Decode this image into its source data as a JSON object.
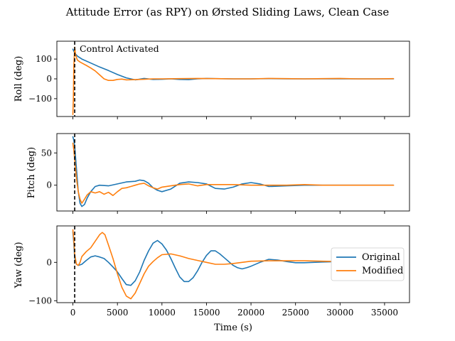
{
  "chart_data": {
    "type": "line",
    "title": "Attitude Error (as RPY) on Ørsted Sliding Laws, Clean Case",
    "xlabel": "Time (s)",
    "xlim": [
      -1800,
      37800
    ],
    "xticks": [
      0,
      5000,
      10000,
      15000,
      20000,
      25000,
      30000,
      35000
    ],
    "grid": false,
    "legend": {
      "location": "right",
      "panel": 2,
      "entries": [
        "Original",
        "Modified"
      ]
    },
    "colors": {
      "Original": "#1f77b4",
      "Modified": "#ff7f0e"
    },
    "annotation": {
      "text": "Control Activated",
      "x": 200,
      "panel": 0
    },
    "panels": [
      {
        "ylabel": "Roll (deg)",
        "ylim": [
          -190,
          190
        ],
        "yticks": [
          -100,
          0,
          100
        ],
        "series": [
          {
            "name": "Original",
            "x": [
              0,
              100,
              200,
              500,
              1000,
              2000,
              3000,
              4000,
              5000,
              6000,
              7000,
              8000,
              9000,
              10000,
              11000,
              12000,
              13000,
              14000,
              15000,
              16000,
              18000,
              20000,
              22000,
              24000,
              26000,
              28000,
              30000,
              32000,
              34000,
              36000
            ],
            "y": [
              150,
              140,
              130,
              115,
              100,
              80,
              60,
              42,
              22,
              5,
              -5,
              2,
              -3,
              -2,
              0,
              -3,
              -4,
              0,
              2,
              1,
              0,
              0,
              1,
              0,
              0,
              0,
              0,
              0,
              0,
              0
            ]
          },
          {
            "name": "Modified",
            "x": [
              0,
              50,
              100,
              200,
              300,
              500,
              800,
              1000,
              1500,
              2000,
              2500,
              3000,
              3500,
              4000,
              4500,
              5000,
              5500,
              6000,
              7000,
              8000,
              9000,
              10000,
              12000,
              14000,
              16000,
              18000,
              20000,
              22000,
              24000,
              26000,
              28000,
              30000,
              32000,
              34000,
              36000
            ],
            "y": [
              -180,
              -100,
              60,
              160,
              120,
              95,
              85,
              80,
              68,
              55,
              40,
              20,
              0,
              -8,
              -8,
              -3,
              -1,
              -5,
              -4,
              -2,
              0,
              0,
              1,
              2,
              1,
              0,
              0,
              2,
              1,
              0,
              1,
              2,
              0,
              0,
              1
            ]
          }
        ]
      },
      {
        "ylabel": "Pitch (deg)",
        "ylim": [
          -40,
          80
        ],
        "yticks": [
          0,
          50
        ],
        "series": [
          {
            "name": "Original",
            "x": [
              0,
              100,
              200,
              400,
              600,
              800,
              1000,
              1300,
              1600,
              2000,
              2500,
              3000,
              4000,
              5000,
              6000,
              7000,
              7500,
              8000,
              8500,
              9000,
              9500,
              10000,
              11000,
              12000,
              13000,
              14000,
              15000,
              16000,
              17000,
              18000,
              19000,
              20000,
              21000,
              22000,
              24000,
              26000,
              28000,
              30000,
              32000,
              34000,
              36000
            ],
            "y": [
              75,
              70,
              60,
              25,
              -10,
              -28,
              -33,
              -30,
              -20,
              -10,
              -2,
              0,
              -1,
              2,
              5,
              6,
              8,
              7,
              3,
              -4,
              -8,
              -10,
              -6,
              3,
              5,
              4,
              2,
              -5,
              -6,
              -3,
              2,
              4,
              2,
              -2,
              -1,
              0,
              0,
              0,
              0,
              0,
              0
            ]
          },
          {
            "name": "Modified",
            "x": [
              0,
              100,
              200,
              400,
              600,
              800,
              1000,
              1300,
              1600,
              2000,
              2500,
              3000,
              3500,
              4000,
              4500,
              5000,
              5500,
              6000,
              6500,
              7000,
              7500,
              8000,
              8500,
              9000,
              9500,
              10000,
              11000,
              12000,
              13000,
              14000,
              15000,
              16000,
              18000,
              20000,
              22000,
              24000,
              26000,
              28000,
              30000,
              32000,
              34000,
              36000
            ],
            "y": [
              65,
              55,
              40,
              10,
              -10,
              -22,
              -28,
              -22,
              -15,
              -10,
              -12,
              -10,
              -14,
              -11,
              -16,
              -10,
              -5,
              -4,
              -2,
              0,
              2,
              3,
              -1,
              -4,
              -6,
              -3,
              -1,
              1,
              2,
              -1,
              1,
              1,
              1,
              0,
              0,
              0,
              1,
              0,
              0,
              0,
              0,
              0
            ]
          }
        ]
      },
      {
        "ylabel": "Yaw (deg)",
        "ylim": [
          -105,
          95
        ],
        "yticks": [
          -100,
          0
        ],
        "series": [
          {
            "name": "Original",
            "x": [
              0,
              100,
              200,
              400,
              600,
              1000,
              1500,
              2000,
              2500,
              3000,
              3500,
              4000,
              4500,
              5000,
              5500,
              6000,
              6500,
              7000,
              7500,
              8000,
              8500,
              9000,
              9500,
              10000,
              10500,
              11000,
              11500,
              12000,
              12500,
              13000,
              13500,
              14000,
              14500,
              15000,
              15500,
              16000,
              16500,
              17000,
              17500,
              18000,
              18500,
              19000,
              19500,
              20000,
              21000,
              22000,
              23000,
              24000,
              25000,
              26000,
              27000,
              28000,
              30000,
              32000,
              34000,
              36000
            ],
            "y": [
              80,
              50,
              10,
              -5,
              -8,
              -5,
              5,
              14,
              17,
              14,
              10,
              0,
              -12,
              -25,
              -42,
              -58,
              -60,
              -48,
              -25,
              5,
              30,
              50,
              57,
              48,
              32,
              10,
              -15,
              -38,
              -50,
              -50,
              -40,
              -22,
              0,
              18,
              30,
              30,
              22,
              12,
              2,
              -8,
              -14,
              -17,
              -14,
              -10,
              0,
              8,
              6,
              2,
              -1,
              -1,
              0,
              1,
              2,
              2,
              1,
              0
            ]
          },
          {
            "name": "Modified",
            "x": [
              0,
              100,
              200,
              400,
              600,
              800,
              1000,
              1500,
              2000,
              2500,
              3000,
              3300,
              3600,
              4000,
              4500,
              5000,
              5500,
              6000,
              6500,
              7000,
              7500,
              8000,
              8500,
              9000,
              9500,
              10000,
              11000,
              12000,
              13000,
              14000,
              15000,
              16000,
              17000,
              18000,
              19000,
              20000,
              22000,
              24000,
              26000,
              28000,
              30000,
              32000,
              34000,
              36000
            ],
            "y": [
              85,
              60,
              20,
              -5,
              -8,
              0,
              15,
              28,
              38,
              55,
              72,
              78,
              72,
              45,
              10,
              -30,
              -65,
              -88,
              -95,
              -80,
              -55,
              -30,
              -10,
              2,
              12,
              20,
              22,
              17,
              10,
              5,
              0,
              -5,
              -5,
              -3,
              0,
              3,
              4,
              4,
              4,
              3,
              2,
              2,
              1,
              1
            ]
          }
        ]
      }
    ]
  }
}
